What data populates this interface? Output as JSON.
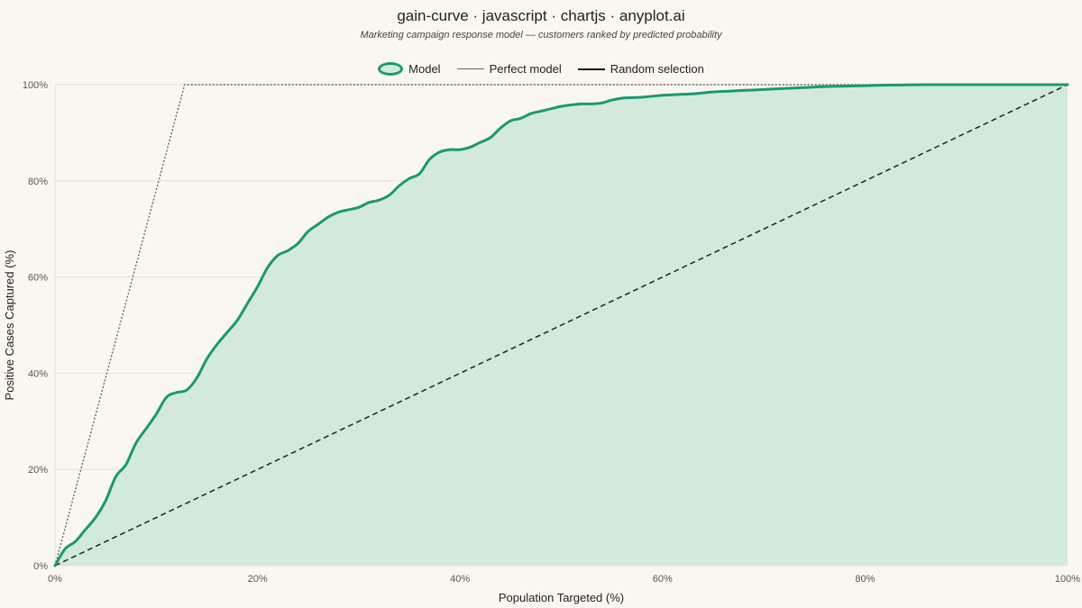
{
  "title": "gain-curve · javascript · chartjs · anyplot.ai",
  "subtitle": "Marketing campaign response model — customers ranked by predicted probability",
  "legend": {
    "model": "Model",
    "perfect": "Perfect model",
    "random": "Random selection"
  },
  "colors": {
    "background": "#faf7f1",
    "model_line": "#1a9970",
    "model_fill": "#d3eadb",
    "perfect_line": "#666666",
    "random_line": "#222222",
    "grid": "#e3e0d8"
  },
  "chart_data": {
    "type": "line",
    "title": "gain-curve · javascript · chartjs · anyplot.ai",
    "subtitle": "Marketing campaign response model — customers ranked by predicted probability",
    "xlabel": "Population Targeted (%)",
    "ylabel": "Positive Cases Captured (%)",
    "xlim": [
      0,
      100
    ],
    "ylim": [
      0,
      100
    ],
    "x_ticks": [
      "0%",
      "20%",
      "40%",
      "60%",
      "80%",
      "100%"
    ],
    "y_ticks": [
      "0%",
      "20%",
      "40%",
      "60%",
      "80%",
      "100%"
    ],
    "grid": "horizontal",
    "legend_position": "top-center",
    "series": [
      {
        "name": "Model",
        "style": "solid, filled area",
        "x": [
          0,
          1,
          2,
          3,
          4,
          5,
          6,
          7,
          8,
          9,
          10,
          11,
          12,
          13,
          14,
          15,
          16,
          17,
          18,
          19,
          20,
          21,
          22,
          23,
          24,
          25,
          26,
          27,
          28,
          29,
          30,
          31,
          32,
          33,
          34,
          35,
          36,
          37,
          38,
          39,
          40,
          41,
          42,
          43,
          44,
          45,
          46,
          47,
          48,
          49,
          50,
          51,
          52,
          53,
          54,
          55,
          56,
          57,
          58,
          59,
          60,
          61,
          62,
          63,
          64,
          65,
          66,
          67,
          68,
          70,
          72,
          74,
          76,
          78,
          80,
          82,
          84,
          86,
          88,
          90,
          92,
          94,
          96,
          98,
          100
        ],
        "y": [
          0,
          3.5,
          5,
          7.5,
          10,
          13.5,
          18.5,
          21,
          25.5,
          28.5,
          31.5,
          35,
          36,
          36.5,
          39,
          43,
          46,
          48.5,
          51,
          54.5,
          58,
          62,
          64.5,
          65.5,
          67,
          69.5,
          71,
          72.5,
          73.5,
          74,
          74.5,
          75.5,
          76,
          77,
          79,
          80.5,
          81.5,
          84.5,
          86,
          86.5,
          86.5,
          87,
          88,
          89,
          91,
          92.5,
          93,
          94,
          94.5,
          95,
          95.5,
          95.8,
          96,
          96,
          96.2,
          96.8,
          97.2,
          97.3,
          97.4,
          97.6,
          97.8,
          97.9,
          98,
          98.1,
          98.3,
          98.5,
          98.6,
          98.7,
          98.8,
          99,
          99.2,
          99.4,
          99.6,
          99.7,
          99.8,
          99.9,
          99.95,
          100,
          100,
          100,
          100,
          100,
          100,
          100,
          100
        ]
      },
      {
        "name": "Perfect model",
        "style": "dotted",
        "x": [
          0,
          12.8,
          100
        ],
        "y": [
          0,
          100,
          100
        ]
      },
      {
        "name": "Random selection",
        "style": "dashed",
        "x": [
          0,
          100
        ],
        "y": [
          0,
          100
        ]
      }
    ]
  }
}
